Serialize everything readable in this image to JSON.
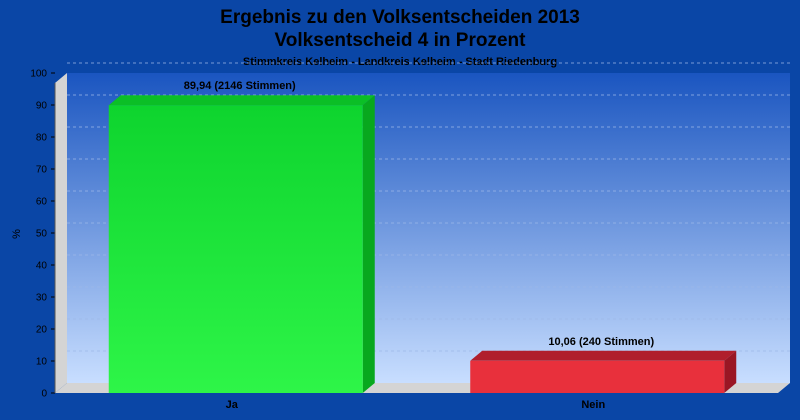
{
  "chart_data": {
    "type": "bar",
    "title_line1": "Ergebnis zu den Volksentscheiden 2013",
    "title_line2": "Volksentscheid 4 in Prozent",
    "subtitle": "Stimmkreis Kelheim - Landkreis Kelheim - Stadt Riedenburg",
    "ylabel": "%",
    "xlabel": "",
    "ylim": [
      0,
      100
    ],
    "yticks": [
      "0",
      "10",
      "20",
      "30",
      "40",
      "50",
      "60",
      "70",
      "80",
      "90",
      "100"
    ],
    "grid": true,
    "categories": [
      "Ja",
      "Nein"
    ],
    "values": [
      89.94,
      10.06
    ],
    "data_labels": [
      "89,94 (2146 Stimmen)",
      "10,06 (240 Stimmen)"
    ],
    "colors": [
      "#22E83A",
      "#E8303C"
    ]
  }
}
